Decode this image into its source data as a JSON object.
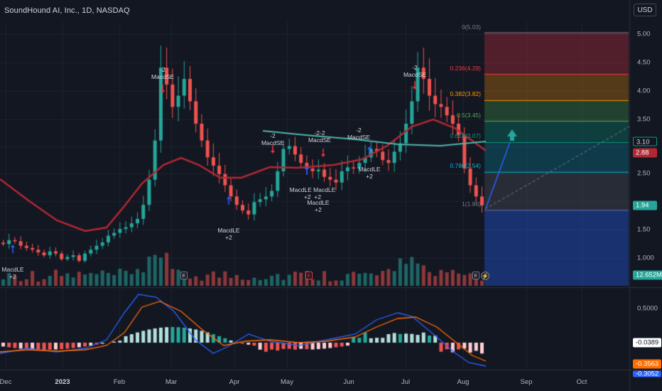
{
  "header": {
    "title": "SoundHound AI, Inc., 1D, NASDAQ",
    "currency": "USD"
  },
  "price_axis": {
    "labels": [
      "5.00",
      "4.50",
      "4.00",
      "3.50",
      "3.00",
      "2.50",
      "2.00",
      "1.50",
      "1.000"
    ]
  },
  "volume_axis": {
    "label": "12.652M"
  },
  "macd_axis": {
    "labels": [
      "0.5000"
    ]
  },
  "time_axis": {
    "labels": [
      "Dec",
      "2023",
      "Feb",
      "Mar",
      "Apr",
      "May",
      "Jun",
      "Jul",
      "Aug",
      "Sep",
      "Oct"
    ]
  },
  "price_badges": {
    "fib_level": "3.10",
    "ma_value": "2.88",
    "last_price": "1.94"
  },
  "macd_badges": {
    "histogram": "-0.0389",
    "signal": "-0.3563",
    "macd": "-0.3052"
  },
  "fibonacci": {
    "levels": [
      {
        "label": "0(5.03)",
        "ratio": 0,
        "price": 5.03,
        "color": "#787b86"
      },
      {
        "label": "0.236(4.29)",
        "ratio": 0.236,
        "price": 4.29,
        "color": "#f23645"
      },
      {
        "label": "0.382(3.82)",
        "ratio": 0.382,
        "price": 3.82,
        "color": "#ff9800"
      },
      {
        "label": "0.5(3.45)",
        "ratio": 0.5,
        "price": 3.45,
        "color": "#4caf50"
      },
      {
        "label": "0.618(3.07)",
        "ratio": 0.618,
        "price": 3.07,
        "color": "#089981"
      },
      {
        "label": "0.786(2.54)",
        "ratio": 0.786,
        "price": 2.54,
        "color": "#00bcd4"
      },
      {
        "label": "1(1.86)",
        "ratio": 1,
        "price": 1.86,
        "color": "#787b86"
      }
    ]
  },
  "signals": [
    {
      "id": "s1",
      "text": "MacdLE\n+2",
      "dir": "up"
    },
    {
      "id": "s2",
      "text": "-2\nMacdSE",
      "dir": "down"
    },
    {
      "id": "s3",
      "text": "MacdLE\n+2",
      "dir": "up"
    },
    {
      "id": "s4",
      "text": "-2\nMacdSE",
      "dir": "down"
    },
    {
      "id": "s5",
      "text": "-2-2\nMacdSE",
      "dir": "down"
    },
    {
      "id": "s6",
      "text": "MacdLE MacdLE\n+2  +2",
      "dir": "up"
    },
    {
      "id": "s7",
      "text": "MacdLE\n+2",
      "dir": "up"
    },
    {
      "id": "s8",
      "text": "-2\nMacdSE",
      "dir": "down"
    },
    {
      "id": "s9",
      "text": "MacdLE\n+2",
      "dir": "up"
    },
    {
      "id": "s10",
      "text": "-2\nMacdSE",
      "dir": "down"
    }
  ],
  "events": {
    "earnings_label": "E",
    "split_label": "E",
    "lightning_label": "⚡"
  },
  "colors": {
    "background": "#131722",
    "up": "#26a69a",
    "down": "#ef5350",
    "ma": "#b22833",
    "ma2": "#26a69a",
    "macd_line": "#2962ff",
    "signal_line": "#ff6d00",
    "grid": "#1e222d"
  },
  "chart_data": {
    "type": "candlestick",
    "title": "SoundHound AI, Inc., 1D, NASDAQ",
    "ylim": [
      1.0,
      5.0
    ],
    "closes": [
      1.25,
      1.32,
      1.3,
      1.22,
      1.18,
      1.15,
      1.1,
      1.05,
      1.12,
      1.08,
      0.98,
      1.02,
      1.05,
      0.95,
      1.08,
      1.15,
      1.22,
      1.28,
      1.4,
      1.45,
      1.52,
      1.55,
      1.62,
      1.7,
      1.95,
      2.4,
      3.1,
      4.4,
      4.1,
      3.7,
      3.9,
      4.2,
      3.8,
      3.4,
      3.1,
      2.8,
      2.65,
      2.5,
      2.3,
      2.1,
      1.95,
      1.85,
      1.78,
      2.0,
      2.05,
      2.1,
      2.2,
      2.55,
      2.95,
      3.0,
      2.85,
      2.7,
      2.6,
      2.55,
      2.58,
      2.45,
      2.4,
      2.35,
      2.55,
      2.62,
      2.6,
      2.7,
      2.8,
      2.95,
      2.9,
      2.75,
      2.7,
      2.9,
      3.05,
      3.4,
      3.8,
      4.4,
      4.2,
      3.9,
      3.75,
      3.7,
      3.55,
      3.4,
      3.2,
      2.6,
      2.3,
      2.1,
      1.94
    ]
  }
}
